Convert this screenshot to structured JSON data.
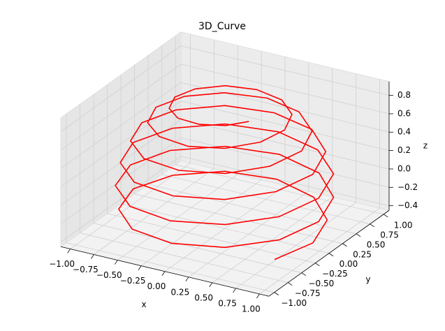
{
  "chart_data": {
    "type": "line3d",
    "title": "3D_Curve",
    "xlabel": "x",
    "ylabel": "y",
    "zlabel": "z",
    "color": "#ff0000",
    "x": [
      0.79,
      0.93,
      0.81,
      0.47,
      0,
      -0.48,
      -0.83,
      -0.97,
      -0.84,
      -0.49,
      0,
      0.49,
      0.86,
      0.99,
      0.86,
      0.5,
      0,
      -0.5,
      -0.87,
      -1.0,
      -0.87,
      -0.5,
      0,
      0.5,
      0.86,
      0.99,
      0.86,
      0.49,
      0,
      -0.49,
      -0.84,
      -0.97,
      -0.83,
      -0.48,
      0,
      0.47,
      0.81,
      0.93,
      0.8,
      0.46,
      0,
      -0.45,
      -0.77,
      -0.88,
      -0.75,
      -0.43,
      0,
      0.42,
      0.71,
      0.81,
      0.69,
      0.39,
      0,
      -0.38,
      -0.64,
      -0.73,
      -0.61,
      -0.35,
      0,
      0.33,
      0.56,
      0.63,
      0.53,
      0.3,
      0,
      -0.28,
      -0.47,
      -0.53,
      -0.44,
      -0.25,
      0,
      0.23,
      0.38
    ],
    "y": [
      -0.46,
      0,
      0.47,
      0.81,
      0.95,
      0.83,
      0.48,
      0,
      -0.49,
      -0.85,
      -0.98,
      -0.85,
      -0.49,
      0,
      0.5,
      0.86,
      1.0,
      0.87,
      0.5,
      0,
      -0.5,
      -0.87,
      -1.0,
      -0.86,
      -0.5,
      0,
      0.5,
      0.85,
      0.98,
      0.85,
      0.49,
      0,
      -0.48,
      -0.83,
      -0.95,
      -0.82,
      -0.47,
      0,
      0.46,
      0.79,
      0.9,
      0.78,
      0.44,
      0,
      -0.43,
      -0.74,
      -0.84,
      -0.72,
      -0.41,
      0,
      0.4,
      0.68,
      0.77,
      0.65,
      0.37,
      0,
      -0.36,
      -0.6,
      -0.68,
      -0.58,
      -0.32,
      0,
      0.31,
      0.52,
      0.58,
      0.49,
      0.27,
      0,
      -0.26,
      -0.43,
      -0.47,
      -0.39,
      -0.22
    ],
    "z": [
      -0.398,
      -0.378,
      -0.358,
      -0.338,
      -0.318,
      -0.298,
      -0.278,
      -0.257,
      -0.237,
      -0.216,
      -0.195,
      -0.175,
      -0.154,
      -0.133,
      -0.112,
      -0.09,
      -0.069,
      -0.048,
      -0.027,
      -0.005,
      0.016,
      0.037,
      0.058,
      0.08,
      0.101,
      0.122,
      0.143,
      0.164,
      0.185,
      0.206,
      0.226,
      0.247,
      0.267,
      0.288,
      0.308,
      0.328,
      0.348,
      0.367,
      0.387,
      0.406,
      0.426,
      0.445,
      0.464,
      0.483,
      0.501,
      0.519,
      0.538,
      0.556,
      0.574,
      0.591,
      0.608,
      0.625,
      0.641,
      0.657,
      0.673,
      0.689,
      0.704,
      0.719,
      0.733,
      0.748,
      0.762,
      0.775,
      0.789,
      0.801,
      0.814,
      0.826,
      0.838,
      0.849,
      0.86,
      0.871,
      0.881,
      0.891,
      0.9
    ],
    "xlim": [
      -1.1,
      1.1
    ],
    "ylim": [
      -1.1,
      1.1
    ],
    "zlim": [
      -0.45,
      0.95
    ],
    "xticks": [
      {
        "value": -1,
        "label": "−1.00"
      },
      {
        "value": -0.75,
        "label": "−0.75"
      },
      {
        "value": -0.5,
        "label": "−0.50"
      },
      {
        "value": -0.25,
        "label": "−0.25"
      },
      {
        "value": 0,
        "label": "0.00"
      },
      0.25,
      {
        "value": 0.5,
        "label": "0.50"
      },
      0.75,
      {
        "value": 1,
        "label": "1.00"
      }
    ],
    "yticks": [
      {
        "value": -1,
        "label": "−1.00"
      },
      {
        "value": -0.75,
        "label": "−0.75"
      },
      {
        "value": -0.5,
        "label": "−0.50"
      },
      {
        "value": -0.25,
        "label": "−0.25"
      },
      {
        "value": 0,
        "label": "0.00"
      },
      0.25,
      {
        "value": 0.5,
        "label": "0.50"
      },
      0.75,
      {
        "value": 1,
        "label": "1.00"
      }
    ],
    "zticks": [
      {
        "value": -0.4,
        "label": "−0.4"
      },
      {
        "value": -0.2,
        "label": "−0.2"
      },
      {
        "value": 0,
        "label": "0.0"
      },
      0.2,
      0.4,
      0.6,
      0.8
    ],
    "grid": true
  }
}
